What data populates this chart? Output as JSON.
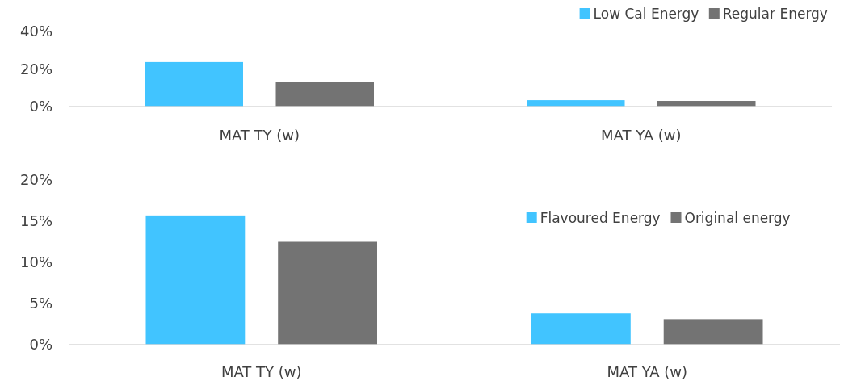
{
  "chart_data": [
    {
      "type": "bar",
      "categories": [
        "MAT TY (w)",
        "MAT YA (w)"
      ],
      "series": [
        {
          "name": "Low Cal Energy",
          "color": "#41c4ff",
          "values": [
            23.7,
            3.4
          ]
        },
        {
          "name": "Regular Energy",
          "color": "#737373",
          "values": [
            12.9,
            3.0
          ]
        }
      ],
      "ylim": [
        0,
        40
      ],
      "yticks": [
        {
          "value": 0,
          "label": "0%"
        },
        {
          "value": 20,
          "label": "20%"
        },
        {
          "value": 40,
          "label": "40%"
        }
      ],
      "grid": false,
      "legend": "top right"
    },
    {
      "type": "bar",
      "categories": [
        "MAT TY (w)",
        "MAT YA (w)"
      ],
      "series": [
        {
          "name": "Flavoured Energy",
          "color": "#41c4ff",
          "values": [
            15.7,
            3.8
          ]
        },
        {
          "name": "Original energy",
          "color": "#737373",
          "values": [
            12.5,
            3.1
          ]
        }
      ],
      "ylim": [
        0,
        20
      ],
      "yticks": [
        {
          "value": 0,
          "label": "0%"
        },
        {
          "value": 5,
          "label": "5%"
        },
        {
          "value": 10,
          "label": "10%"
        },
        {
          "value": 15,
          "label": "15%"
        },
        {
          "value": 20,
          "label": "20%"
        }
      ],
      "grid": false,
      "legend": "right"
    }
  ]
}
